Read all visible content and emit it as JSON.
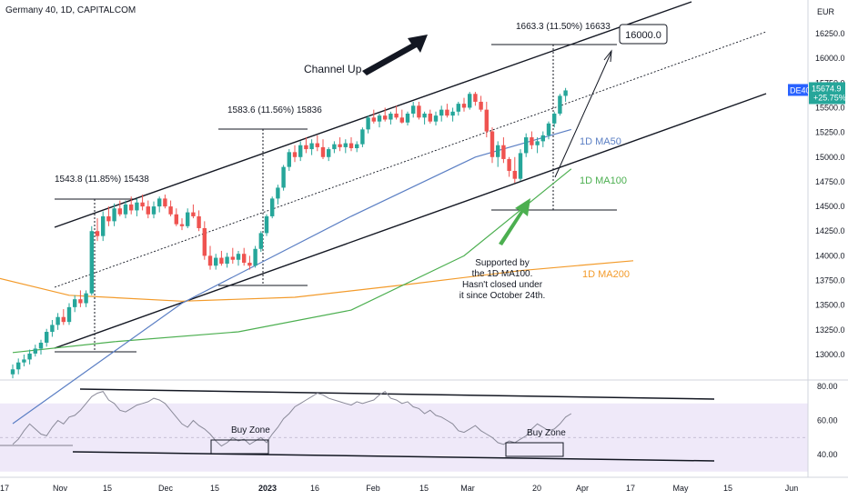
{
  "header": {
    "title": "Germany 40, 1D, CAPITALCOM"
  },
  "chart_data": [
    {
      "type": "candlestick",
      "symbol_badge": "DE40",
      "price_badge": {
        "price": "15674.9",
        "change": "+25.75%"
      },
      "currency_label": "EUR",
      "yticks": [
        "16250.0",
        "16000.0",
        "15750.0",
        "15500.0",
        "15250.0",
        "15000.0",
        "14750.0",
        "14500.0",
        "14250.0",
        "14000.0",
        "13750.0",
        "13500.0",
        "13250.0",
        "13000.0"
      ],
      "ytick_values": [
        16250,
        16000,
        15750,
        15500,
        15250,
        15000,
        14750,
        14500,
        14250,
        14000,
        13750,
        13500,
        13250,
        13000
      ],
      "xticks": [
        "17",
        "Nov",
        "15",
        "Dec",
        "15",
        "2023",
        "16",
        "Feb",
        "15",
        "Mar",
        "20",
        "Apr",
        "17",
        "May",
        "15",
        "Jun"
      ],
      "price_range": [
        12850,
        16400
      ],
      "candles": [
        [
          12800,
          12900,
          12760,
          12850
        ],
        [
          12850,
          12960,
          12800,
          12920
        ],
        [
          12920,
          13000,
          12880,
          12950
        ],
        [
          12950,
          13050,
          12900,
          13010
        ],
        [
          13010,
          13100,
          12980,
          13060
        ],
        [
          13060,
          13150,
          13000,
          13120
        ],
        [
          13120,
          13260,
          13080,
          13230
        ],
        [
          13230,
          13350,
          13180,
          13300
        ],
        [
          13300,
          13420,
          13250,
          13380
        ],
        [
          13380,
          13460,
          13300,
          13330
        ],
        [
          13330,
          13520,
          13300,
          13480
        ],
        [
          13480,
          13600,
          13430,
          13560
        ],
        [
          13560,
          13650,
          13480,
          13520
        ],
        [
          13520,
          13650,
          13480,
          13620
        ],
        [
          13620,
          14300,
          13600,
          14250
        ],
        [
          14250,
          14380,
          14150,
          14200
        ],
        [
          14200,
          14450,
          14150,
          14400
        ],
        [
          14400,
          14500,
          14300,
          14350
        ],
        [
          14350,
          14530,
          14300,
          14480
        ],
        [
          14480,
          14560,
          14400,
          14420
        ],
        [
          14420,
          14560,
          14380,
          14520
        ],
        [
          14520,
          14600,
          14420,
          14460
        ],
        [
          14460,
          14580,
          14400,
          14540
        ],
        [
          14540,
          14620,
          14460,
          14500
        ],
        [
          14500,
          14560,
          14380,
          14420
        ],
        [
          14420,
          14550,
          14380,
          14500
        ],
        [
          14500,
          14600,
          14440,
          14580
        ],
        [
          14580,
          14620,
          14480,
          14500
        ],
        [
          14500,
          14560,
          14400,
          14420
        ],
        [
          14420,
          14480,
          14300,
          14320
        ],
        [
          14320,
          14380,
          14260,
          14300
        ],
        [
          14300,
          14480,
          14280,
          14440
        ],
        [
          14440,
          14520,
          14380,
          14400
        ],
        [
          14400,
          14460,
          14250,
          14280
        ],
        [
          14280,
          14350,
          13960,
          14000
        ],
        [
          14000,
          14100,
          13860,
          13900
        ],
        [
          13900,
          14020,
          13860,
          13980
        ],
        [
          13980,
          14050,
          13900,
          13920
        ],
        [
          13920,
          14030,
          13880,
          13990
        ],
        [
          13990,
          14080,
          13920,
          13960
        ],
        [
          13960,
          14050,
          13900,
          14020
        ],
        [
          14020,
          14080,
          13900,
          13930
        ],
        [
          13930,
          14000,
          13860,
          13900
        ],
        [
          13900,
          14100,
          13880,
          14070
        ],
        [
          14070,
          14250,
          14040,
          14230
        ],
        [
          14230,
          14420,
          14200,
          14400
        ],
        [
          14400,
          14600,
          14380,
          14580
        ],
        [
          14580,
          14720,
          14520,
          14690
        ],
        [
          14690,
          14920,
          14660,
          14900
        ],
        [
          14900,
          15080,
          14860,
          15050
        ],
        [
          15050,
          15120,
          14950,
          15000
        ],
        [
          15000,
          15160,
          14960,
          15120
        ],
        [
          15120,
          15200,
          15040,
          15080
        ],
        [
          15080,
          15180,
          15020,
          15140
        ],
        [
          15140,
          15220,
          15060,
          15100
        ],
        [
          15100,
          15180,
          14980,
          15000
        ],
        [
          15000,
          15100,
          14960,
          15080
        ],
        [
          15080,
          15160,
          15040,
          15130
        ],
        [
          15130,
          15200,
          15060,
          15100
        ],
        [
          15100,
          15180,
          15040,
          15140
        ],
        [
          15140,
          15200,
          15060,
          15090
        ],
        [
          15090,
          15160,
          15050,
          15130
        ],
        [
          15130,
          15300,
          15100,
          15280
        ],
        [
          15280,
          15420,
          15240,
          15400
        ],
        [
          15400,
          15480,
          15340,
          15360
        ],
        [
          15360,
          15440,
          15300,
          15420
        ],
        [
          15420,
          15500,
          15360,
          15380
        ],
        [
          15380,
          15460,
          15330,
          15440
        ],
        [
          15440,
          15520,
          15380,
          15400
        ],
        [
          15400,
          15480,
          15340,
          15350
        ],
        [
          15350,
          15460,
          15320,
          15440
        ],
        [
          15440,
          15560,
          15400,
          15520
        ],
        [
          15520,
          15560,
          15380,
          15400
        ],
        [
          15400,
          15460,
          15330,
          15440
        ],
        [
          15440,
          15480,
          15340,
          15360
        ],
        [
          15360,
          15460,
          15320,
          15420
        ],
        [
          15420,
          15520,
          15360,
          15480
        ],
        [
          15480,
          15540,
          15400,
          15420
        ],
        [
          15420,
          15500,
          15360,
          15460
        ],
        [
          15460,
          15560,
          15420,
          15540
        ],
        [
          15540,
          15600,
          15460,
          15500
        ],
        [
          15500,
          15660,
          15480,
          15640
        ],
        [
          15640,
          15660,
          15520,
          15560
        ],
        [
          15560,
          15620,
          15460,
          15480
        ],
        [
          15480,
          15560,
          15200,
          15260
        ],
        [
          15260,
          15300,
          14940,
          15000
        ],
        [
          15000,
          15160,
          14900,
          15120
        ],
        [
          15120,
          15200,
          14940,
          14980
        ],
        [
          14980,
          15000,
          14800,
          14860
        ],
        [
          14860,
          15000,
          14740,
          14780
        ],
        [
          14780,
          15080,
          14760,
          15040
        ],
        [
          15040,
          15240,
          15000,
          15200
        ],
        [
          15200,
          15260,
          15080,
          15120
        ],
        [
          15120,
          15200,
          15040,
          15160
        ],
        [
          15160,
          15260,
          15100,
          15220
        ],
        [
          15220,
          15360,
          15180,
          15340
        ],
        [
          15340,
          15460,
          15300,
          15440
        ],
        [
          15440,
          15640,
          15420,
          15620
        ],
        [
          15620,
          15700,
          15560,
          15675
        ]
      ],
      "ma50": [
        [
          0,
          12300
        ],
        [
          30,
          13520
        ],
        [
          60,
          14400
        ],
        [
          82,
          15000
        ],
        [
          99,
          15280
        ]
      ],
      "ma100": [
        [
          0,
          13020
        ],
        [
          18,
          13130
        ],
        [
          40,
          13230
        ],
        [
          60,
          13450
        ],
        [
          80,
          14000
        ],
        [
          99,
          14880
        ]
      ],
      "ma200": [
        [
          -8,
          13850
        ],
        [
          10,
          13600
        ],
        [
          30,
          13540
        ],
        [
          50,
          13580
        ],
        [
          70,
          13710
        ],
        [
          90,
          13850
        ],
        [
          110,
          13950
        ]
      ],
      "annotations": {
        "channel_label": "Channel Up",
        "target_label": "16000.0",
        "measure1": "1543.8 (11.85%) 15438",
        "measure2": "1583.6 (11.56%) 15836",
        "measure3": "1663.3 (11.50%) 16633",
        "ma50_label": "1D MA50",
        "ma100_label": "1D MA100",
        "ma200_label": "1D MA200",
        "support_note": [
          "Supported by",
          "the 1D MA100.",
          "Hasn't closed under",
          "it since October 24th."
        ]
      },
      "colors": {
        "up": "#26a69a",
        "down": "#ef5350",
        "ma50": "#5b7fc4",
        "ma100": "#4caf50",
        "ma200": "#f39b2b",
        "rsi": "#8a8a99",
        "badge": "#2962ff"
      }
    },
    {
      "type": "line",
      "indicator": "RSI",
      "yticks": [
        "80.00",
        "60.00",
        "40.00"
      ],
      "ytick_values": [
        80,
        60,
        40
      ],
      "band": [
        30,
        70
      ],
      "mid": 50,
      "values": [
        46,
        49,
        54,
        58,
        55,
        52,
        51,
        56,
        60,
        58,
        62,
        63,
        66,
        70,
        74,
        76,
        77,
        72,
        70,
        66,
        65,
        67,
        69,
        70,
        71,
        73,
        72,
        70,
        66,
        62,
        58,
        56,
        60,
        57,
        55,
        52,
        48,
        45,
        47,
        50,
        48,
        49,
        46,
        48,
        50,
        47,
        52,
        56,
        61,
        64,
        68,
        70,
        72,
        74,
        76,
        75,
        73,
        72,
        71,
        70,
        69,
        71,
        70,
        71,
        72,
        75,
        77,
        73,
        72,
        70,
        71,
        68,
        67,
        64,
        66,
        63,
        62,
        60,
        58,
        54,
        53,
        55,
        57,
        54,
        52,
        50,
        47,
        46,
        48,
        47,
        49,
        51,
        55,
        58,
        56,
        54,
        55,
        58,
        62,
        64
      ],
      "buy_zone_label": "Buy Zone"
    }
  ]
}
